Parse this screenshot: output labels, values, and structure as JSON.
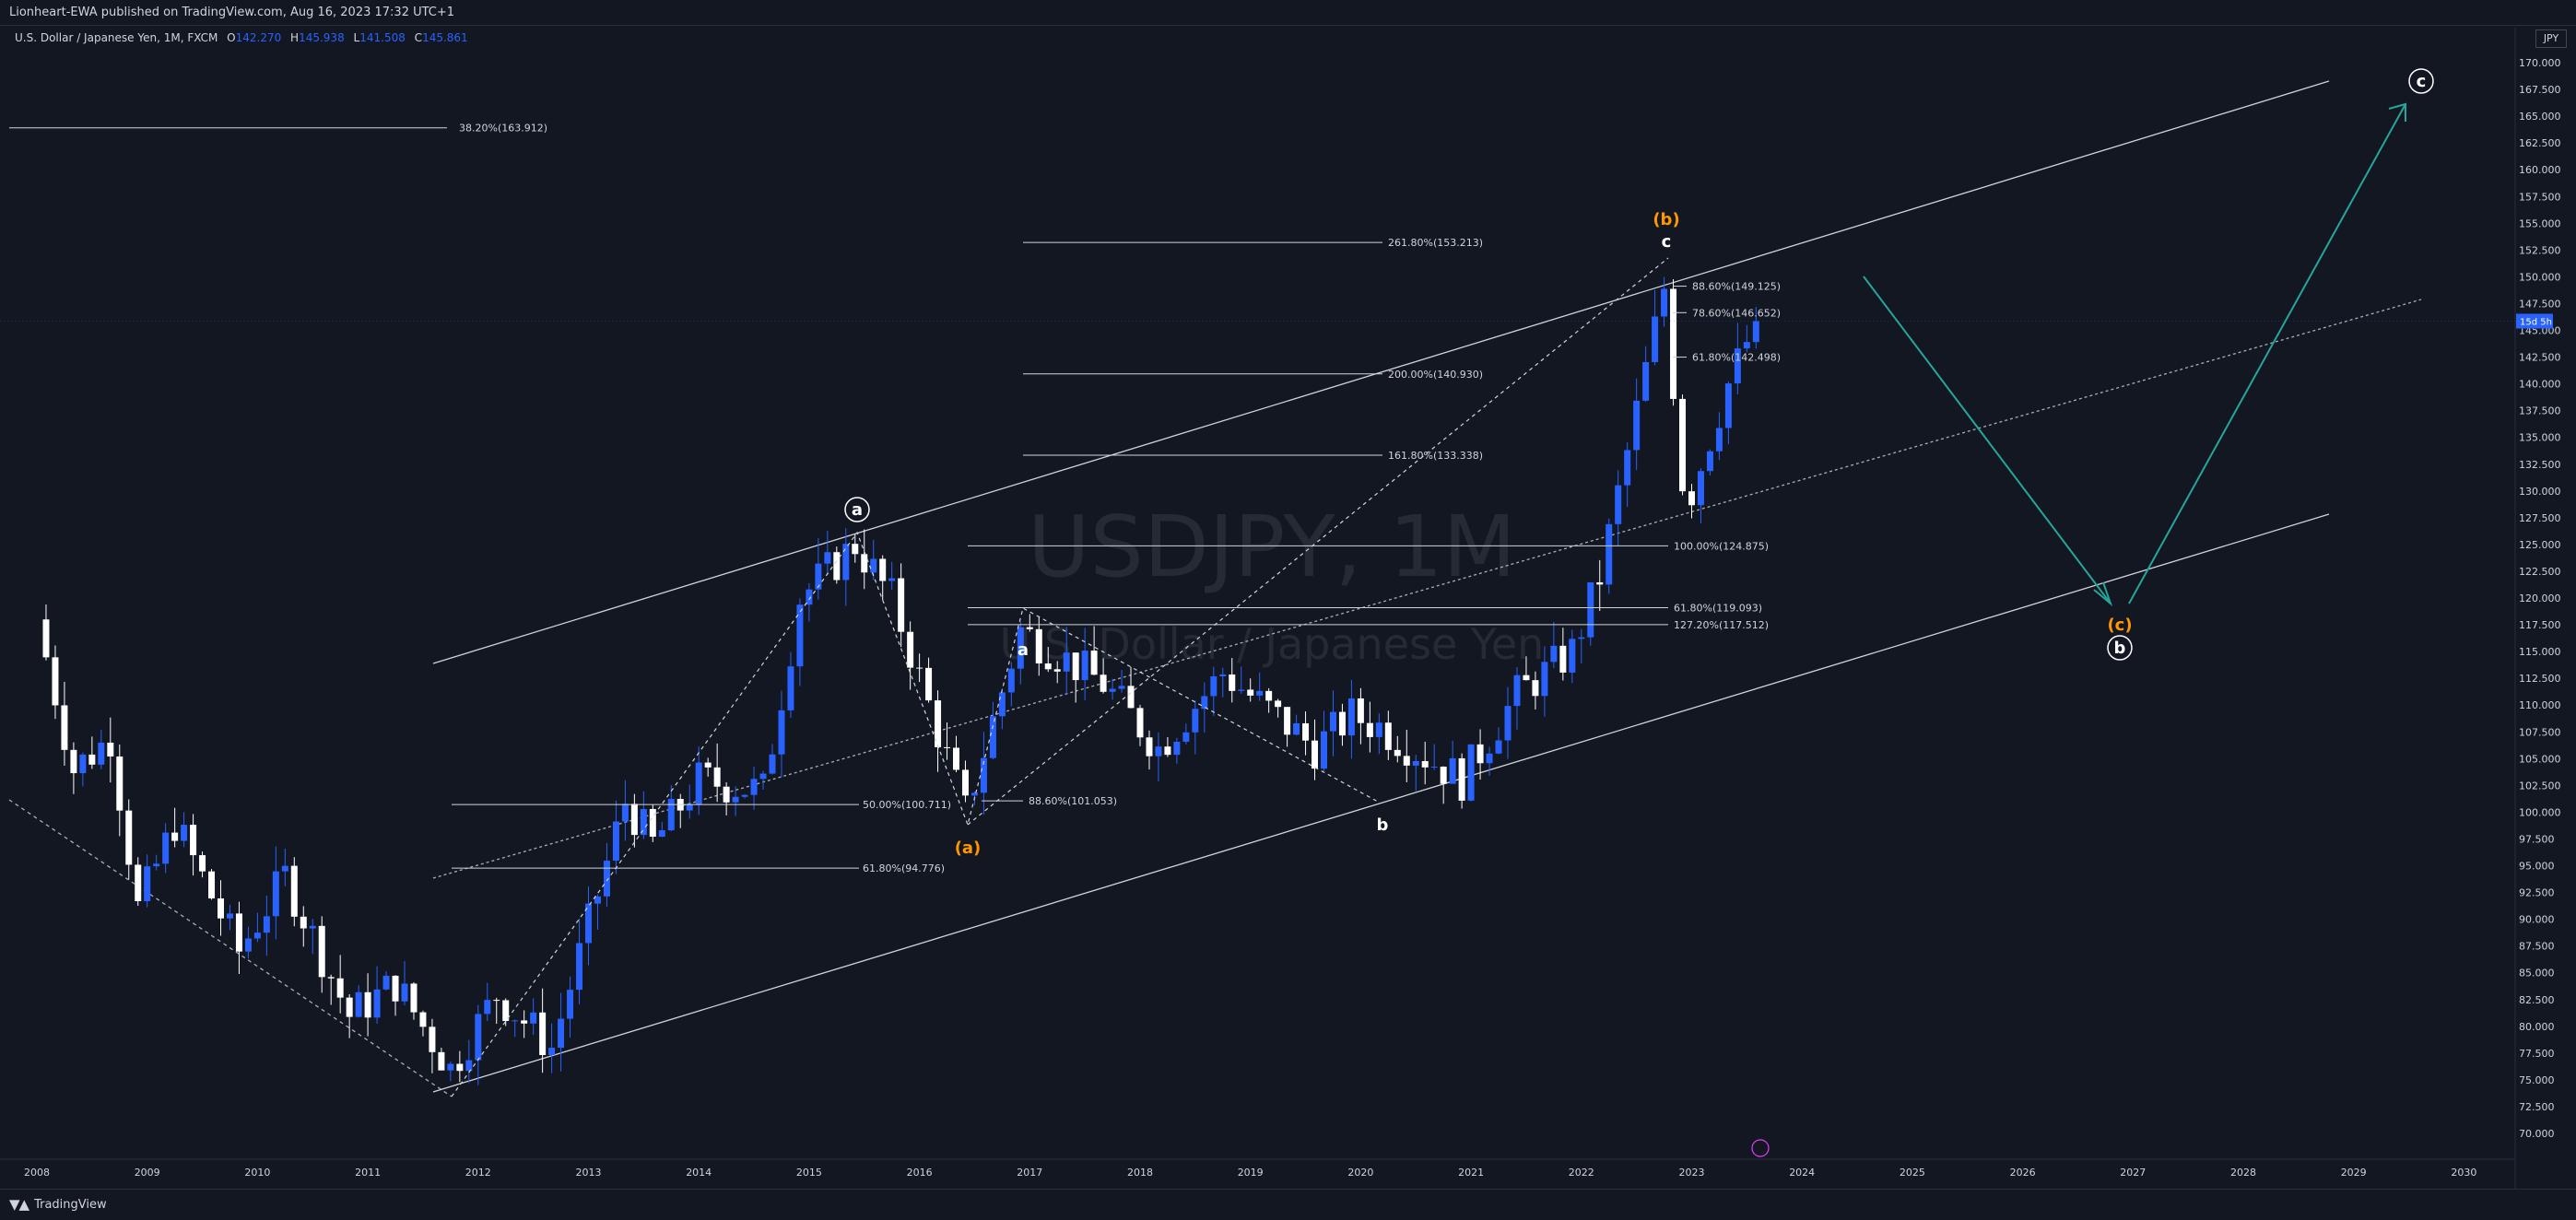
{
  "header": {
    "publisher_line": "Lionheart-EWA published on TradingView.com, Aug 16, 2023 17:32 UTC+1"
  },
  "symbol": {
    "title": "U.S. Dollar / Japanese Yen, 1M, FXCM",
    "o_label": "O",
    "o_value": "142.270",
    "h_label": "H",
    "h_value": "145.938",
    "l_label": "L",
    "l_value": "141.508",
    "c_label": "C",
    "c_value": "145.861",
    "currency": "JPY"
  },
  "footer": {
    "brand": "TradingView"
  },
  "colors": {
    "background": "#131722",
    "bull_candle": "#2962ff",
    "bear_candle": "#ffffff",
    "orange_label": "#ff9800",
    "teal_arrow": "#26a69a",
    "last_price_tag": "#2962ff"
  },
  "chart_data": {
    "type": "candlestick",
    "title": "USDJPY, 1M",
    "subtitle": "U.S. Dollar / Japanese Yen",
    "ylim": [
      67.5,
      172.5
    ],
    "y_ticks": [
      "170.000",
      "167.500",
      "165.000",
      "162.500",
      "160.000",
      "157.500",
      "155.000",
      "152.500",
      "150.000",
      "147.500",
      "145.000",
      "142.500",
      "140.000",
      "137.500",
      "135.000",
      "132.500",
      "130.000",
      "127.500",
      "125.000",
      "122.500",
      "120.000",
      "117.500",
      "115.000",
      "112.500",
      "110.000",
      "107.500",
      "105.000",
      "102.500",
      "100.000",
      "97.500",
      "95.000",
      "92.500",
      "90.000",
      "87.500",
      "85.000",
      "82.500",
      "80.000",
      "77.500",
      "75.000",
      "72.500",
      "70.000"
    ],
    "x_ticks": [
      "2008",
      "2009",
      "2010",
      "2011",
      "2012",
      "2013",
      "2014",
      "2015",
      "2016",
      "2017",
      "2018",
      "2019",
      "2020",
      "2021",
      "2022",
      "2023",
      "2024",
      "2025",
      "2026",
      "2027",
      "2028",
      "2029",
      "2030"
    ],
    "last_price_label": "15d 5h",
    "last_price": 145.861,
    "price_path": [
      [
        "2008-01",
        118
      ],
      [
        "2008-05",
        104
      ],
      [
        "2008-09",
        107
      ],
      [
        "2008-12",
        91
      ],
      [
        "2009-04",
        99
      ],
      [
        "2009-11",
        87
      ],
      [
        "2010-04",
        94
      ],
      [
        "2010-11",
        81
      ],
      [
        "2011-04",
        84
      ],
      [
        "2011-10",
        76
      ],
      [
        "2012-03",
        83
      ],
      [
        "2012-09",
        78
      ],
      [
        "2013-05",
        101
      ],
      [
        "2013-08",
        97
      ],
      [
        "2014-01",
        103
      ],
      [
        "2014-08",
        102
      ],
      [
        "2014-12",
        120
      ],
      [
        "2015-06",
        125
      ],
      [
        "2015-10",
        120
      ],
      [
        "2016-06",
        100
      ],
      [
        "2016-12",
        117
      ],
      [
        "2017-09",
        112
      ],
      [
        "2018-03",
        106
      ],
      [
        "2018-10",
        113
      ],
      [
        "2019-08",
        106
      ],
      [
        "2019-12",
        109
      ],
      [
        "2020-03",
        108
      ],
      [
        "2020-12",
        103
      ],
      [
        "2021-06",
        111
      ],
      [
        "2021-12",
        115
      ],
      [
        "2022-03",
        122
      ],
      [
        "2022-10",
        149
      ],
      [
        "2022-12",
        131
      ],
      [
        "2023-01",
        130
      ],
      [
        "2023-05",
        140
      ],
      [
        "2023-08",
        145.86
      ]
    ],
    "fib_levels": [
      {
        "label": "38.20%(163.912)",
        "value": 163.912
      },
      {
        "label": "261.80%(153.213)",
        "value": 153.213
      },
      {
        "label": "200.00%(140.930)",
        "value": 140.93
      },
      {
        "label": "161.80%(133.338)",
        "value": 133.338
      },
      {
        "label": "100.00%(124.875)",
        "value": 124.875
      },
      {
        "label": "61.80%(119.093)",
        "value": 119.093
      },
      {
        "label": "127.20%(117.512)",
        "value": 117.512
      },
      {
        "label": "50.00%(100.711)",
        "value": 100.711
      },
      {
        "label": "88.60%(101.053)",
        "value": 101.053
      },
      {
        "label": "61.80%(94.776)",
        "value": 94.776
      },
      {
        "label": "88.60%(149.125)",
        "value": 149.125
      },
      {
        "label": "78.60%(146.652)",
        "value": 146.652
      },
      {
        "label": "61.80%(142.498)",
        "value": 142.498
      }
    ],
    "wave_labels": [
      {
        "text": "a",
        "circled": true,
        "color": "white"
      },
      {
        "text": "(a)",
        "circled": false,
        "color": "orange"
      },
      {
        "text": "a",
        "circled": false,
        "color": "white"
      },
      {
        "text": "b",
        "circled": false,
        "color": "white"
      },
      {
        "text": "(b)",
        "circled": false,
        "color": "orange"
      },
      {
        "text": "c",
        "circled": false,
        "color": "white"
      },
      {
        "text": "(c)",
        "circled": false,
        "color": "orange"
      },
      {
        "text": "b",
        "circled": true,
        "color": "white"
      },
      {
        "text": "c",
        "circled": true,
        "color": "white"
      }
    ]
  }
}
